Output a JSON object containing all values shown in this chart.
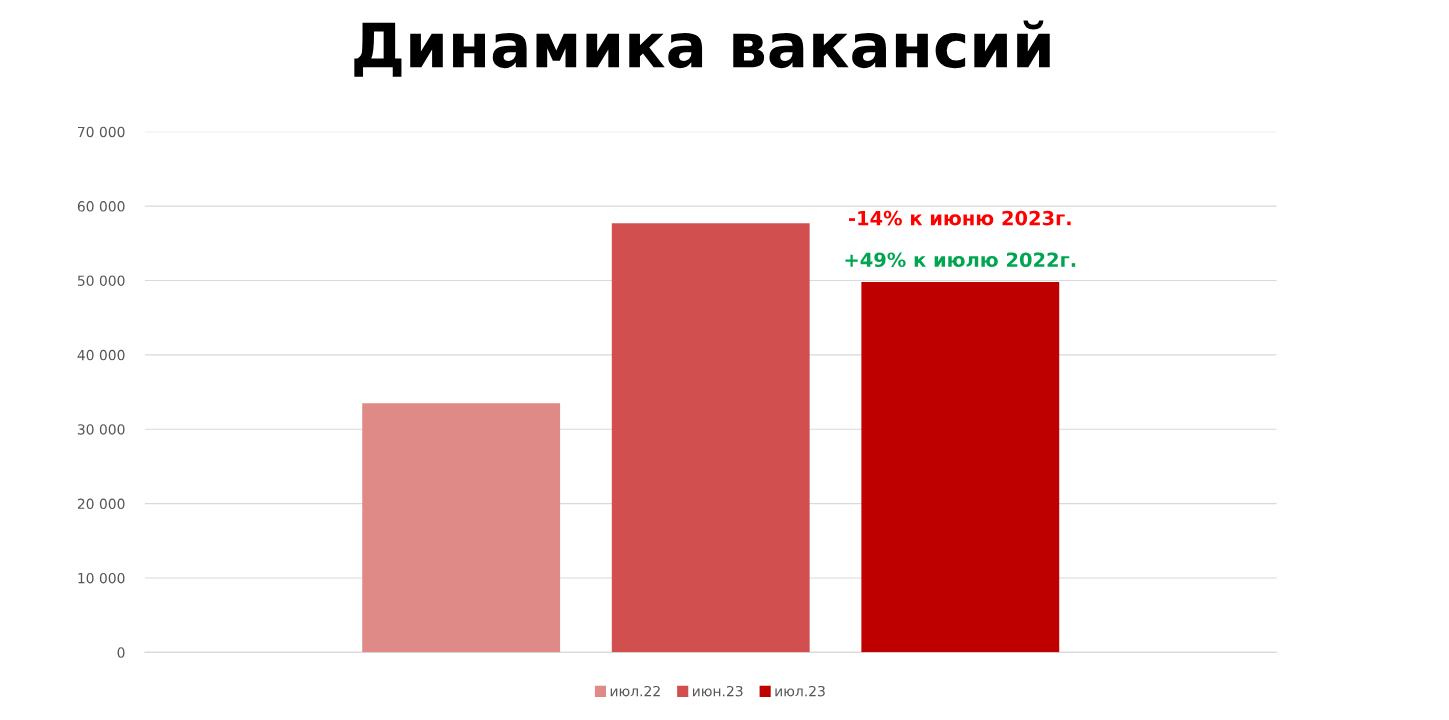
{
  "chart_data": {
    "type": "bar",
    "title": "Динамика вакансий",
    "categories": [
      null
    ],
    "series": [
      {
        "name": "июл.22",
        "color": "#e08a88",
        "values": [
          33500
        ]
      },
      {
        "name": "июн.23",
        "color": "#d14f4f",
        "values": [
          57700
        ]
      },
      {
        "name": "июл.23",
        "color": "#bf0000",
        "values": [
          49800
        ]
      }
    ],
    "ylim": [
      0,
      70000
    ],
    "yticks": [
      {
        "value": 0,
        "label": "0"
      },
      {
        "value": 10000,
        "label": "10 000"
      },
      {
        "value": 20000,
        "label": "20 000"
      },
      {
        "value": 30000,
        "label": "30 000"
      },
      {
        "value": 40000,
        "label": "40 000"
      },
      {
        "value": 50000,
        "label": "50 000"
      },
      {
        "value": 60000,
        "label": "60 000"
      },
      {
        "value": 70000,
        "label": "70 000"
      }
    ],
    "grid": "y",
    "legend": "bottom",
    "annotations": [
      "-14% к июню 2023г.",
      "+49% к июлю 2022г."
    ]
  }
}
